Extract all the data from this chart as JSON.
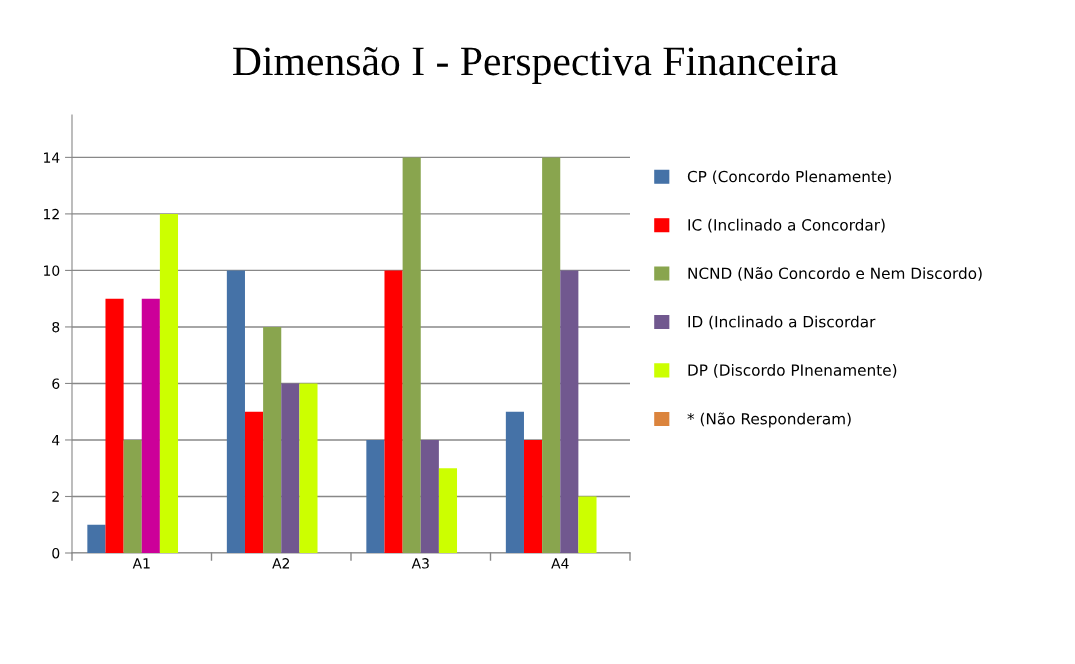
{
  "chart_data": {
    "type": "bar",
    "title": "Dimensão I - Perspectiva Financeira",
    "categories": [
      "A1",
      "A2",
      "A3",
      "A4"
    ],
    "series": [
      {
        "name": "CP (Concordo Plenamente)",
        "color": "#4572a7",
        "values": [
          1,
          10,
          4,
          5
        ]
      },
      {
        "name": "IC (Inclinado a Concordar)",
        "color": "#ff0000",
        "values": [
          9,
          5,
          10,
          4
        ]
      },
      {
        "name": "NCND (Não Concordo e Nem Discordo)",
        "color": "#89a54e",
        "values": [
          4,
          8,
          14,
          14
        ]
      },
      {
        "name": "ID (Inclinado a Discordar",
        "color": "#71588f",
        "colors": [
          "#cc0099",
          "#71588f",
          "#71588f",
          "#71588f"
        ],
        "values": [
          9,
          6,
          4,
          10
        ]
      },
      {
        "name": "DP (Discordo PInenamente)",
        "color": "#ccff00",
        "values": [
          12,
          6,
          3,
          2
        ]
      },
      {
        "name": "* (Não Responderam)",
        "color": "#db843d",
        "values": [
          0,
          0,
          0,
          0
        ]
      }
    ],
    "ylim": [
      0,
      15.5
    ],
    "yticks": [
      0,
      2,
      4,
      6,
      8,
      10,
      12,
      14
    ],
    "grid": "y",
    "legend": "right"
  }
}
